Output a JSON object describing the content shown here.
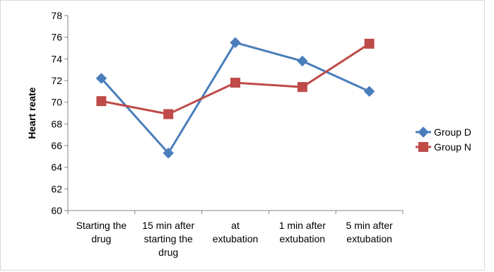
{
  "chart_data": {
    "type": "line",
    "title": "",
    "xlabel": "",
    "ylabel": "Heart reate",
    "ylim": [
      60,
      78
    ],
    "ytick_step": 2,
    "categories": [
      [
        "Starting  the",
        "drug"
      ],
      [
        "15 min after",
        "starting the",
        "drug"
      ],
      [
        "at",
        "extubation"
      ],
      [
        "1 min after",
        "extubation"
      ],
      [
        "5 min after",
        "extubation"
      ]
    ],
    "series": [
      {
        "name": "Group D",
        "values": [
          72.2,
          65.3,
          75.5,
          73.8,
          71.0
        ],
        "color": "#4a7ebb",
        "marker": "diamond"
      },
      {
        "name": "Group N",
        "values": [
          70.1,
          68.9,
          71.8,
          71.4,
          75.4
        ],
        "color": "#be4b48",
        "marker": "square"
      }
    ],
    "grid": false,
    "legend_position": "right"
  }
}
